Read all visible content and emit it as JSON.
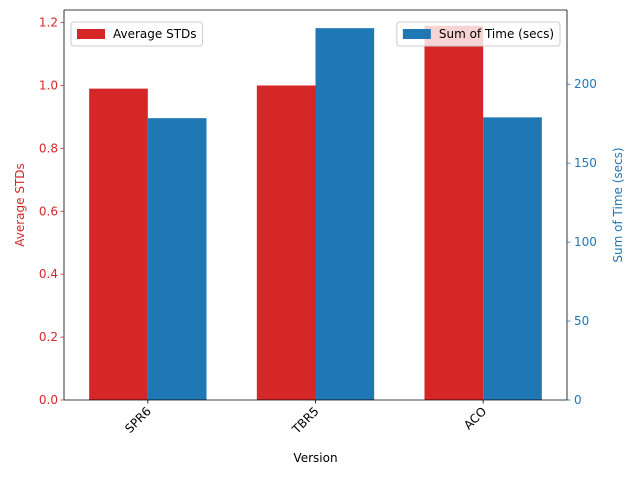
{
  "chart_data": {
    "type": "bar",
    "categories": [
      "SPR6",
      "TBR5",
      "ACO"
    ],
    "xlabel": "Version",
    "series": [
      {
        "name": "Average STDs",
        "axis": "left",
        "color": "#d62728",
        "values": [
          0.99,
          1.0,
          1.19
        ]
      },
      {
        "name": "Sum of Time (secs)",
        "axis": "right",
        "color": "#1f77b4",
        "values": [
          178.5,
          235.5,
          179
        ]
      }
    ],
    "y_left": {
      "label": "Average STDs",
      "ylim": [
        0,
        1.24
      ],
      "ticks": [
        0.0,
        0.2,
        0.4,
        0.6,
        0.8,
        1.0,
        1.2
      ],
      "tick_labels": [
        "0.0",
        "0.2",
        "0.4",
        "0.6",
        "0.8",
        "1.0",
        "1.2"
      ],
      "color": "#d62728"
    },
    "y_right": {
      "label": "Sum of Time (secs)",
      "ylim": [
        0,
        247
      ],
      "ticks": [
        0,
        50,
        100,
        150,
        200
      ],
      "tick_labels": [
        "0",
        "50",
        "100",
        "150",
        "200"
      ],
      "color": "#1f77b4"
    },
    "legends": [
      {
        "entries": [
          "Average STDs"
        ],
        "placement": "upper-left"
      },
      {
        "entries": [
          "Sum of Time (secs)"
        ],
        "placement": "upper-right"
      }
    ],
    "grid": false
  }
}
